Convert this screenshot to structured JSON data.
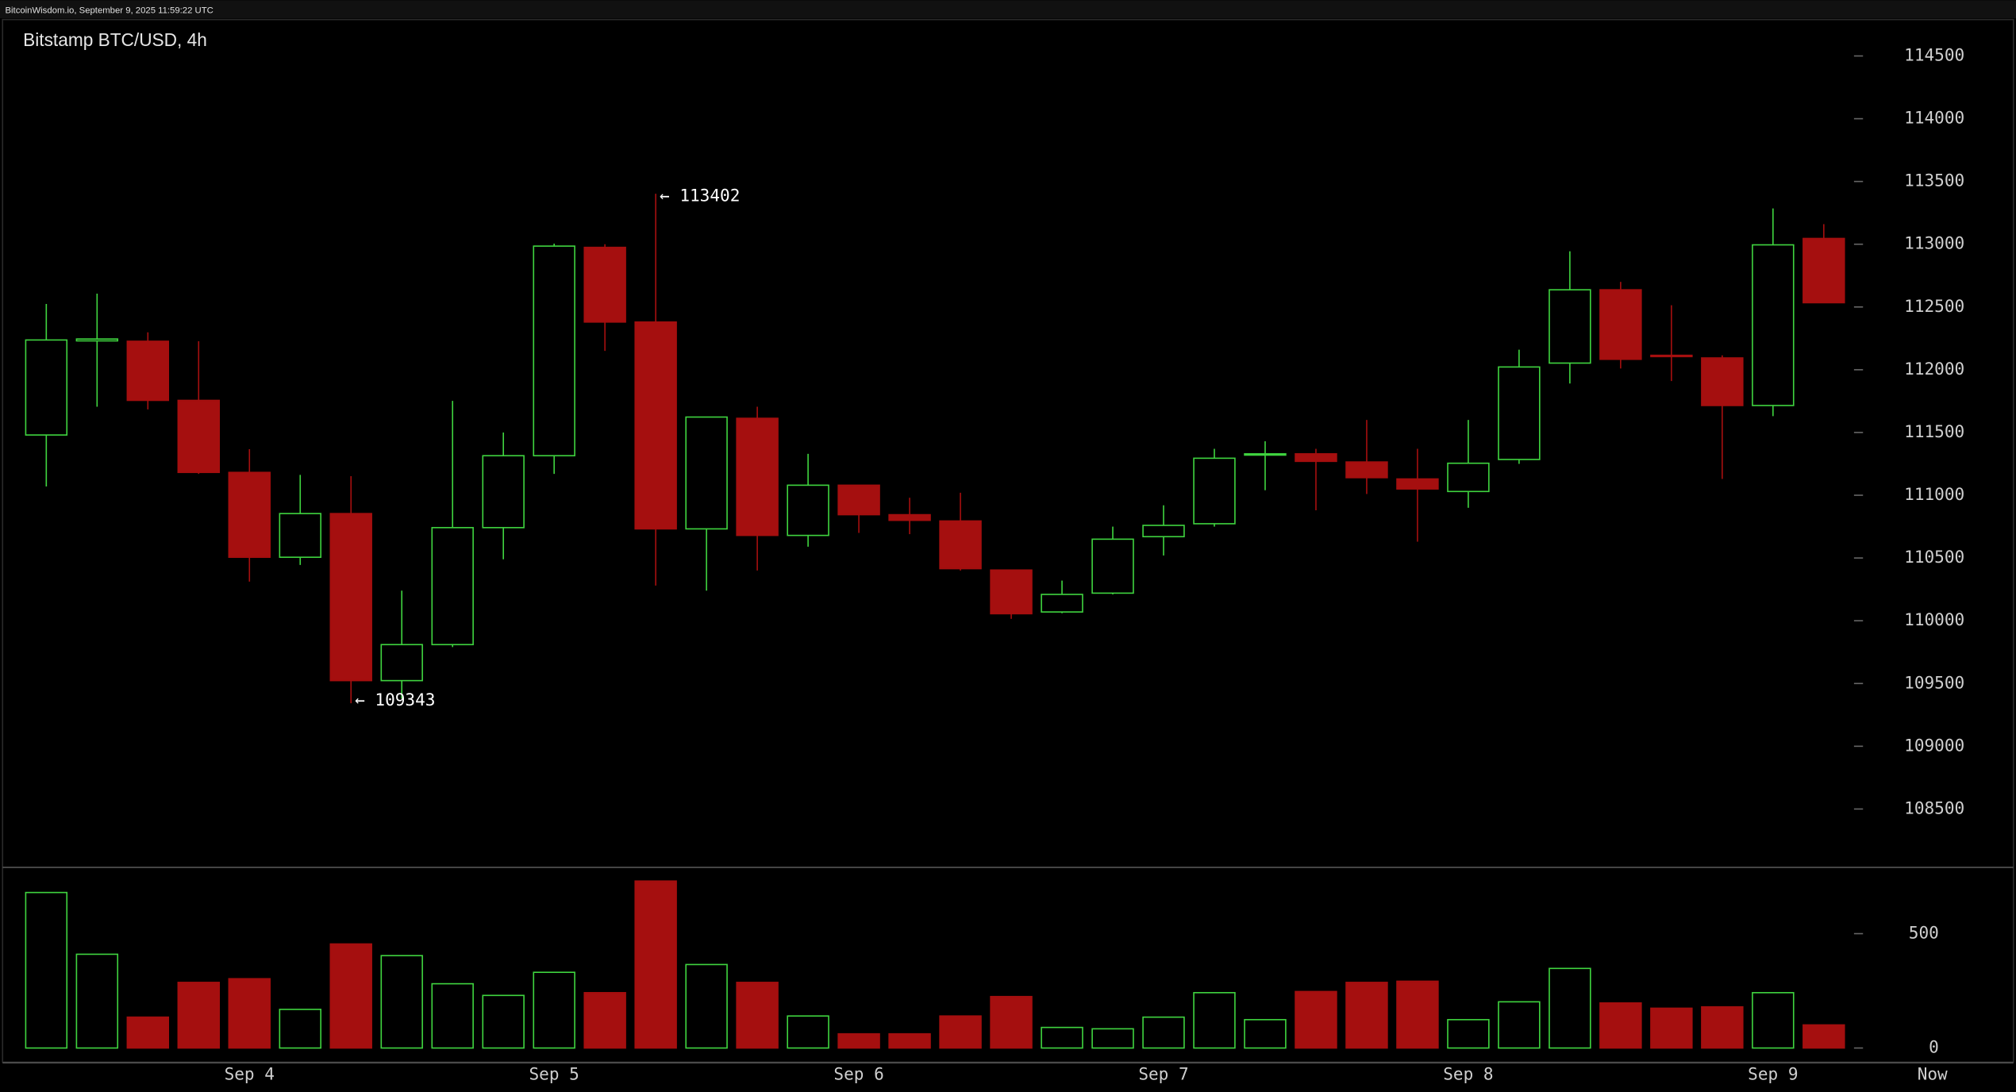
{
  "header": "BitcoinWisdom.io, September 9, 2025 11:59:22 UTC",
  "chart_data": {
    "type": "candlestick",
    "title": "Bitstamp BTC/USD, 4h",
    "categories": [
      null,
      null,
      null,
      null,
      "Sep 4",
      null,
      null,
      null,
      null,
      null,
      "Sep 5",
      null,
      null,
      null,
      null,
      null,
      "Sep 6",
      null,
      null,
      null,
      null,
      null,
      "Sep 7",
      null,
      null,
      null,
      null,
      null,
      "Sep 8",
      null,
      null,
      null,
      null,
      null,
      "Sep 9",
      null
    ],
    "now_label": "Now",
    "open": [
      111480,
      112230,
      112227,
      111756,
      111182,
      110506,
      110854,
      109523,
      109810,
      110742,
      111315,
      112975,
      112380,
      110732,
      111613,
      110680,
      111080,
      110845,
      110795,
      110404,
      110070,
      110220,
      110670,
      110773,
      111320,
      111330,
      111265,
      111130,
      111030,
      111285,
      112053,
      112637,
      112115,
      112094,
      111715,
      113046
    ],
    "high": [
      112524,
      112606,
      112298,
      112227,
      111367,
      111162,
      111152,
      110240,
      111752,
      111500,
      113005,
      113000,
      113402,
      111623,
      111705,
      111330,
      111080,
      110980,
      111020,
      110404,
      110320,
      110750,
      110920,
      111370,
      111430,
      111370,
      111600,
      111370,
      111600,
      112160,
      112944,
      112700,
      112514,
      112115,
      113285,
      113160
    ],
    "low": [
      111070,
      111705,
      111684,
      111170,
      110312,
      110445,
      109343,
      109380,
      109790,
      110490,
      111170,
      112150,
      110280,
      110240,
      110400,
      110590,
      110700,
      110690,
      110400,
      110015,
      110060,
      110210,
      110520,
      110750,
      111040,
      110880,
      111010,
      110630,
      110900,
      111250,
      111890,
      112010,
      111910,
      111130,
      111630,
      112534
    ],
    "close": [
      112237,
      112245,
      111756,
      111182,
      110506,
      110854,
      109523,
      109810,
      110742,
      111315,
      112985,
      112380,
      110732,
      111623,
      110680,
      111080,
      110845,
      110800,
      110415,
      110056,
      110210,
      110650,
      110760,
      111295,
      111330,
      111270,
      111140,
      111050,
      111255,
      112022,
      112637,
      112083,
      112105,
      111715,
      112995,
      112534
    ],
    "volume": [
      680,
      410,
      135,
      287,
      303,
      169,
      455,
      404,
      281,
      230,
      331,
      242,
      730,
      365,
      287,
      140,
      62,
      62,
      140,
      225,
      90,
      84,
      135,
      242,
      124,
      247,
      287,
      292,
      124,
      202,
      348,
      197,
      174,
      180,
      242,
      101
    ],
    "up_color": "#3fd33f",
    "down_color": "#a50f0f",
    "ylim": [
      108040,
      114790
    ],
    "yticks": [
      108500,
      109000,
      109500,
      110000,
      110500,
      111000,
      111500,
      112000,
      112500,
      113000,
      113500,
      114000,
      114500
    ],
    "y2lim": [
      0,
      787
    ],
    "y2ticks": [
      0,
      500
    ],
    "annotations": [
      {
        "label": "← 113402",
        "value": 113402
      },
      {
        "label": "← 109343",
        "value": 109343
      }
    ]
  }
}
